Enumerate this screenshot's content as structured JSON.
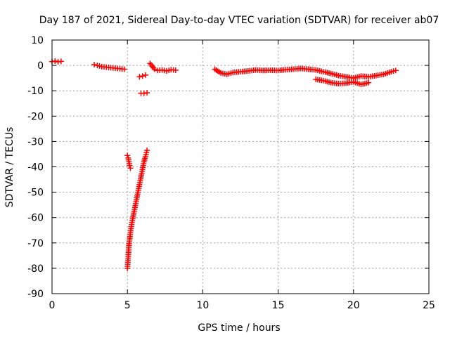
{
  "chart_data": {
    "type": "scatter",
    "title": "Day 187 of 2021, Sidereal Day-to-day VTEC variation (SDTVAR) for receiver ab07",
    "xlabel": "GPS time / hours",
    "ylabel": "SDTVAR / TECUs",
    "xlim": [
      0,
      25
    ],
    "ylim": [
      -90,
      10
    ],
    "xticks": [
      0,
      5,
      10,
      15,
      20,
      25
    ],
    "yticks": [
      10,
      0,
      -10,
      -20,
      -30,
      -40,
      -50,
      -60,
      -70,
      -80,
      -90
    ],
    "grid": true,
    "marker": "+",
    "color": "#ff0000",
    "series": [
      {
        "name": "SDTVAR",
        "segments": [
          {
            "x": [
              0.0,
              0.2,
              0.4,
              0.6
            ],
            "y": [
              1.5,
              1.7,
              1.4,
              1.6
            ]
          },
          {
            "x": [
              2.8,
              3.0,
              3.3,
              3.6,
              3.9,
              4.2,
              4.5,
              4.8
            ],
            "y": [
              0.3,
              0.0,
              -0.5,
              -0.7,
              -0.9,
              -1.1,
              -1.3,
              -1.5
            ]
          },
          {
            "x": [
              5.0,
              5.05,
              5.1,
              5.15,
              5.2
            ],
            "y": [
              -35.5,
              -36.5,
              -38.0,
              -39.5,
              -40.5
            ]
          },
          {
            "x": [
              5.0,
              5.05,
              5.1,
              5.2,
              5.3,
              5.4,
              5.5,
              5.6,
              5.7,
              5.8,
              5.9,
              6.0,
              6.1,
              6.2,
              6.3
            ],
            "y": [
              -80.0,
              -76.0,
              -71.0,
              -66.0,
              -62.0,
              -59.0,
              -56.0,
              -53.0,
              -50.0,
              -47.0,
              -44.0,
              -41.0,
              -38.0,
              -36.0,
              -33.5
            ]
          },
          {
            "x": [
              5.9,
              6.1,
              6.3
            ],
            "y": [
              -11.0,
              -11.0,
              -10.8
            ]
          },
          {
            "x": [
              5.8,
              6.0,
              6.2
            ],
            "y": [
              -4.5,
              -4.2,
              -3.8
            ]
          },
          {
            "x": [
              6.5,
              6.8,
              7.0,
              7.3,
              7.6,
              7.9,
              8.2
            ],
            "y": [
              0.8,
              -1.5,
              -2.0,
              -1.8,
              -2.2,
              -1.7,
              -1.9
            ]
          },
          {
            "x": [
              10.8,
              11.2,
              11.6,
              12.0,
              12.5,
              13.0,
              13.5,
              14.0,
              14.5,
              15.0,
              15.5,
              16.0,
              16.5,
              17.0,
              17.5,
              18.0,
              18.5,
              19.0,
              19.5,
              20.0,
              20.5,
              21.0,
              21.5,
              22.0,
              22.5,
              22.8
            ],
            "y": [
              -1.5,
              -3.0,
              -3.5,
              -2.8,
              -2.5,
              -2.2,
              -1.8,
              -2.0,
              -1.9,
              -2.0,
              -1.7,
              -1.5,
              -1.2,
              -1.5,
              -1.8,
              -2.5,
              -3.2,
              -4.0,
              -4.5,
              -5.0,
              -4.2,
              -4.5,
              -4.0,
              -3.5,
              -2.5,
              -2.0
            ]
          },
          {
            "x": [
              17.5,
              18.0,
              18.5,
              19.0,
              19.5,
              20.0,
              20.5,
              21.0
            ],
            "y": [
              -5.5,
              -6.0,
              -6.8,
              -7.2,
              -7.0,
              -6.5,
              -7.5,
              -6.8
            ]
          }
        ]
      }
    ]
  }
}
